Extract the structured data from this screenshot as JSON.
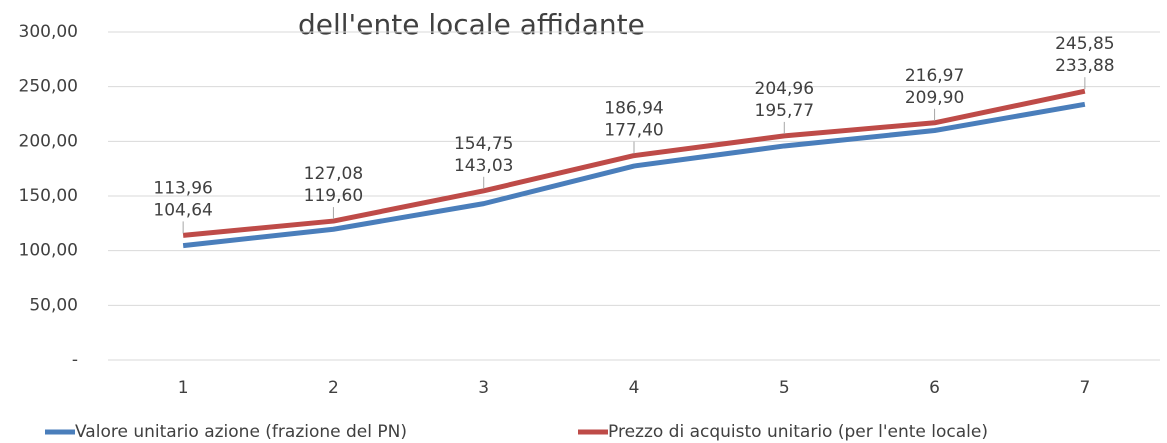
{
  "chart_data": {
    "type": "line",
    "title": "dell'ente locale affidante",
    "categories": [
      "1",
      "2",
      "3",
      "4",
      "5",
      "6",
      "7"
    ],
    "series": [
      {
        "name": "Valore unitario azione (frazione del PN)",
        "color": "#4a7ebb",
        "values": [
          104.64,
          119.6,
          143.03,
          177.4,
          195.77,
          209.9,
          233.88
        ],
        "value_labels": [
          "104,64",
          "119,60",
          "143,03",
          "177,40",
          "195,77",
          "209,90",
          "233,88"
        ]
      },
      {
        "name": "Prezzo di acquisto unitario (per l'ente locale)",
        "color": "#be4b48",
        "values": [
          113.96,
          127.08,
          154.75,
          186.94,
          204.96,
          216.97,
          245.85
        ],
        "value_labels": [
          "113,96",
          "127,08",
          "154,75",
          "186,94",
          "204,96",
          "216,97",
          "245,85"
        ]
      }
    ],
    "ylim": [
      0,
      300
    ],
    "yticks": [
      {
        "value": 0,
        "label": "-"
      },
      {
        "value": 50,
        "label": "50,00"
      },
      {
        "value": 100,
        "label": "100,00"
      },
      {
        "value": 150,
        "label": "150,00"
      },
      {
        "value": 200,
        "label": "200,00"
      },
      {
        "value": 250,
        "label": "250,00"
      },
      {
        "value": 300,
        "label": "300,00"
      }
    ],
    "grid": true,
    "legend": "bottom"
  }
}
